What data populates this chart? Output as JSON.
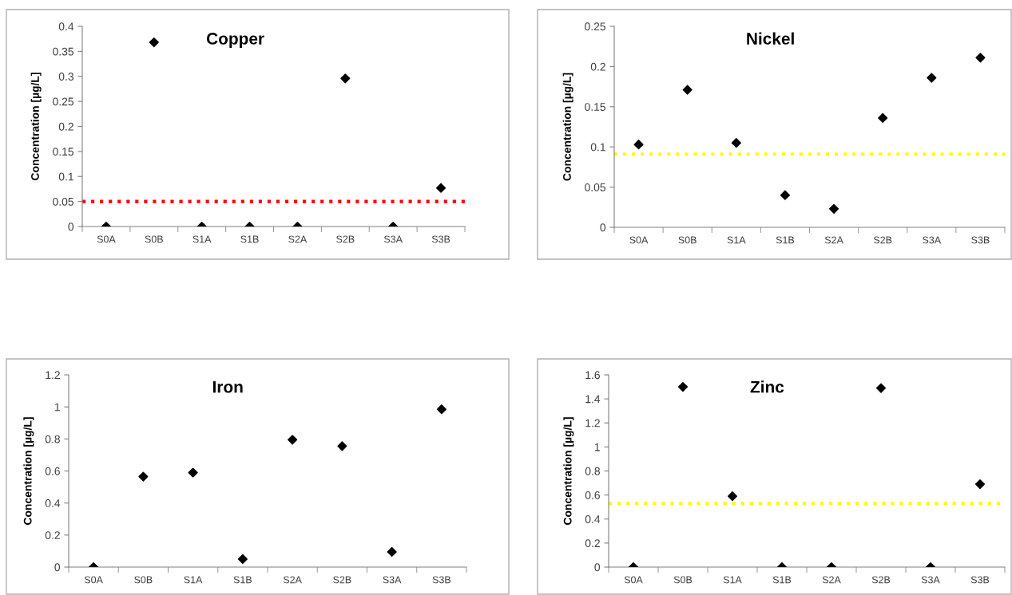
{
  "chart_data": [
    {
      "type": "scatter",
      "title": "Copper",
      "ylabel": "Concentration [µg/L]",
      "categories": [
        "S0A",
        "S0B",
        "S1A",
        "S1B",
        "S2A",
        "S2B",
        "S3A",
        "S3B"
      ],
      "series": [
        {
          "color": "#000000",
          "values": [
            0,
            0.368,
            0,
            0,
            0,
            0.296,
            0,
            0.077
          ]
        }
      ],
      "ylim": [
        0,
        0.4
      ],
      "yticks": [
        0,
        0.05,
        0.1,
        0.15,
        0.2,
        0.25,
        0.3,
        0.35,
        0.4
      ],
      "marker": "diamond",
      "grid": false,
      "legend": false,
      "ref_lines": [
        {
          "axis": "y",
          "value": 0.05,
          "color": "#ff0000",
          "line_style": "dotted"
        }
      ]
    },
    {
      "type": "scatter",
      "title": "Nickel",
      "ylabel": "Concentration [µg/L]",
      "categories": [
        "S0A",
        "S0B",
        "S1A",
        "S1B",
        "S2A",
        "S2B",
        "S3A",
        "S3B"
      ],
      "series": [
        {
          "color": "#000000",
          "values": [
            0.103,
            0.171,
            0.105,
            0.04,
            0.023,
            0.136,
            0.186,
            0.211
          ]
        }
      ],
      "ylim": [
        0,
        0.25
      ],
      "yticks": [
        0,
        0.05,
        0.1,
        0.15,
        0.2,
        0.25
      ],
      "marker": "diamond",
      "grid": false,
      "legend": false,
      "ref_lines": [
        {
          "axis": "y",
          "value": 0.091,
          "color": "#ffff00",
          "line_style": "dotted"
        }
      ]
    },
    {
      "type": "scatter",
      "title": "Iron",
      "ylabel": "Concentration [µg/L]",
      "categories": [
        "S0A",
        "S0B",
        "S1A",
        "S1B",
        "S2A",
        "S2B",
        "S3A",
        "S3B"
      ],
      "series": [
        {
          "color": "#000000",
          "values": [
            0,
            0.565,
            0.59,
            0.05,
            0.795,
            0.755,
            0.095,
            0.985
          ]
        }
      ],
      "ylim": [
        0,
        1.2
      ],
      "yticks": [
        0,
        0.2,
        0.4,
        0.6,
        0.8,
        1,
        1.2
      ],
      "marker": "diamond",
      "grid": false,
      "legend": false
    },
    {
      "type": "scatter",
      "title": "Zinc",
      "ylabel": "Concentration [µg/L]",
      "categories": [
        "S0A",
        "S0B",
        "S1A",
        "S1B",
        "S2A",
        "S2B",
        "S3A",
        "S3B"
      ],
      "series": [
        {
          "color": "#000000",
          "values": [
            0,
            1.5,
            0.59,
            0,
            0,
            1.49,
            0,
            0.69
          ]
        }
      ],
      "ylim": [
        0,
        1.6
      ],
      "yticks": [
        0,
        0.2,
        0.4,
        0.6,
        0.8,
        1,
        1.2,
        1.4,
        1.6
      ],
      "marker": "diamond",
      "grid": false,
      "legend": false,
      "ref_lines": [
        {
          "axis": "y",
          "value": 0.53,
          "color": "#ffff00",
          "line_style": "dotted"
        }
      ]
    }
  ]
}
